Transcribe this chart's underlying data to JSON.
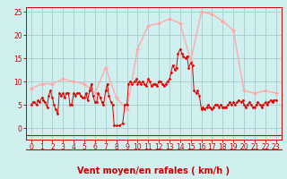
{
  "background_color": "#cff0ee",
  "grid_color": "#aacccc",
  "xlabel": "Vent moyen/en rafales ( km/h )",
  "xlabel_color": "#cc0000",
  "xlabel_fontsize": 7,
  "xlim": [
    -0.5,
    23.5
  ],
  "ylim": [
    -2.5,
    26
  ],
  "yticks": [
    0,
    5,
    10,
    15,
    20,
    25
  ],
  "xticks": [
    0,
    1,
    2,
    3,
    4,
    5,
    6,
    7,
    8,
    9,
    10,
    11,
    12,
    13,
    14,
    15,
    16,
    17,
    18,
    19,
    20,
    21,
    22,
    23
  ],
  "tick_fontsize": 5.5,
  "line1_color": "#ffaaaa",
  "line2_color": "#dd0000",
  "line1_x": [
    0,
    1,
    2,
    3,
    4,
    5,
    6,
    7,
    8,
    9,
    10,
    11,
    12,
    13,
    14,
    15,
    16,
    17,
    18,
    19,
    20,
    21,
    22,
    23
  ],
  "line1_y": [
    8.5,
    9.5,
    9.5,
    10.5,
    10.0,
    9.5,
    7.5,
    13.0,
    6.5,
    4.0,
    17.0,
    22.0,
    22.5,
    23.5,
    22.5,
    14.5,
    25.0,
    24.5,
    23.0,
    21.0,
    8.0,
    7.5,
    8.0,
    7.5
  ],
  "line2_x": [
    0.0,
    0.15,
    0.3,
    0.5,
    0.65,
    0.8,
    1.0,
    1.15,
    1.3,
    1.5,
    1.65,
    1.8,
    2.0,
    2.15,
    2.3,
    2.5,
    2.65,
    2.8,
    3.0,
    3.15,
    3.3,
    3.5,
    3.65,
    3.8,
    4.0,
    4.15,
    4.3,
    4.5,
    4.65,
    4.8,
    5.0,
    5.15,
    5.3,
    5.5,
    5.65,
    5.8,
    6.0,
    6.15,
    6.3,
    6.5,
    6.65,
    6.8,
    7.0,
    7.15,
    7.3,
    7.5,
    7.65,
    7.8,
    8.0,
    8.3,
    8.6,
    8.8,
    9.0,
    9.15,
    9.3,
    9.5,
    9.7,
    9.9,
    10.0,
    10.15,
    10.3,
    10.5,
    10.65,
    10.8,
    11.0,
    11.15,
    11.3,
    11.5,
    11.65,
    11.8,
    12.0,
    12.15,
    12.3,
    12.5,
    12.65,
    12.8,
    13.0,
    13.15,
    13.3,
    13.5,
    13.65,
    13.8,
    14.0,
    14.15,
    14.3,
    14.5,
    14.65,
    14.8,
    15.0,
    15.15,
    15.3,
    15.5,
    15.65,
    15.8,
    16.0,
    16.15,
    16.3,
    16.5,
    16.65,
    16.8,
    17.0,
    17.15,
    17.3,
    17.5,
    17.65,
    17.8,
    18.0,
    18.15,
    18.3,
    18.5,
    18.65,
    18.8,
    19.0,
    19.15,
    19.3,
    19.5,
    19.7,
    19.9,
    20.0,
    20.15,
    20.3,
    20.5,
    20.65,
    20.8,
    21.0,
    21.15,
    21.3,
    21.5,
    21.65,
    21.8,
    22.0,
    22.15,
    22.3,
    22.5,
    22.65,
    22.8,
    23.0
  ],
  "line2_y": [
    5.0,
    5.5,
    5.5,
    5.0,
    6.0,
    5.5,
    6.5,
    6.0,
    5.5,
    4.5,
    7.0,
    8.0,
    6.5,
    5.0,
    4.0,
    3.0,
    7.5,
    7.0,
    7.5,
    6.5,
    7.5,
    7.5,
    5.0,
    5.0,
    7.5,
    7.0,
    7.5,
    7.5,
    7.0,
    6.5,
    6.5,
    7.5,
    6.0,
    8.0,
    9.5,
    7.0,
    5.5,
    5.5,
    7.5,
    6.5,
    5.5,
    5.0,
    8.0,
    9.5,
    7.0,
    5.5,
    5.0,
    0.5,
    0.5,
    0.5,
    1.0,
    5.0,
    5.0,
    9.5,
    10.0,
    9.5,
    10.0,
    10.5,
    9.5,
    10.0,
    9.5,
    10.0,
    9.5,
    9.0,
    10.5,
    10.0,
    9.0,
    9.5,
    9.5,
    9.0,
    10.0,
    10.0,
    9.5,
    9.0,
    9.5,
    10.0,
    10.5,
    12.0,
    13.5,
    12.5,
    13.0,
    16.0,
    17.0,
    16.0,
    15.5,
    15.0,
    15.5,
    13.0,
    14.0,
    13.5,
    8.0,
    7.5,
    8.0,
    7.0,
    4.0,
    4.5,
    4.0,
    4.5,
    5.0,
    4.5,
    4.0,
    4.5,
    5.0,
    5.0,
    4.5,
    5.0,
    4.5,
    4.5,
    4.5,
    5.0,
    5.5,
    5.0,
    5.5,
    5.0,
    5.5,
    6.0,
    5.5,
    6.0,
    5.0,
    4.5,
    5.0,
    5.5,
    5.0,
    4.5,
    4.5,
    5.0,
    5.5,
    5.0,
    4.5,
    5.0,
    5.5,
    5.0,
    5.5,
    6.0,
    5.5,
    6.0,
    6.0
  ]
}
